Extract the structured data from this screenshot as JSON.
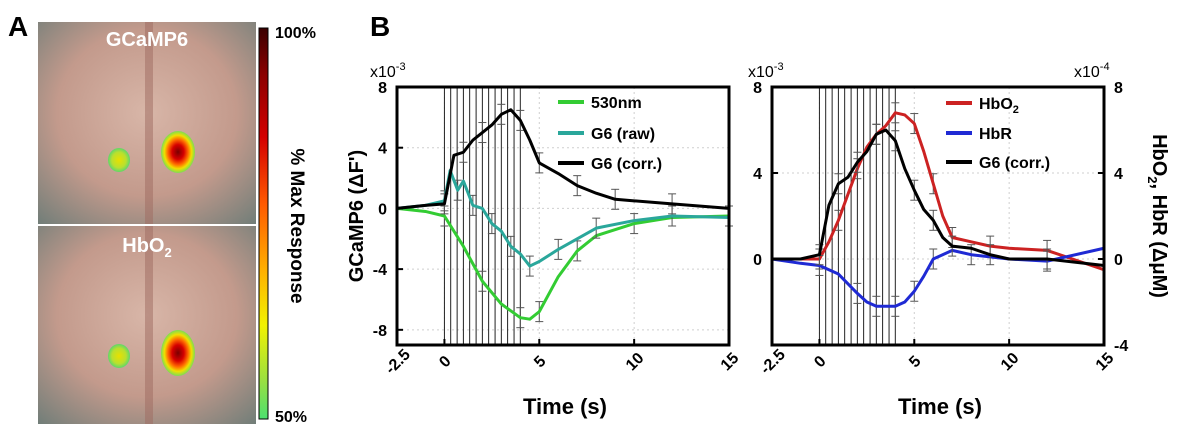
{
  "panel_a": {
    "label": "A",
    "top_image_title": "GCaMP6",
    "bottom_image_title_main": "HbO",
    "bottom_image_title_sub": "2",
    "colorbar": {
      "top_label": "100%",
      "bottom_label": "50%",
      "title": "% Max Response",
      "colors": [
        "#3b0000",
        "#8b0000",
        "#d40000",
        "#ff5a00",
        "#ffb000",
        "#f2f200",
        "#9be040",
        "#4ce070"
      ]
    }
  },
  "panel_b": {
    "label": "B"
  },
  "chart_data": [
    {
      "type": "line",
      "exponent_label": "x10",
      "exponent_power": "-3",
      "ylabel": "GCaMP6 (ΔF')",
      "xlabel": "Time (s)",
      "xlim": [
        -2.5,
        15
      ],
      "ylim": [
        -9,
        8
      ],
      "xticks": [
        -2.5,
        0,
        5,
        10,
        15
      ],
      "xtick_labels": [
        "-2.5",
        "0",
        "5",
        "10",
        "15"
      ],
      "yticks": [
        -8,
        -4,
        0,
        4,
        8
      ],
      "ytick_labels": [
        "-8",
        "-4",
        "0",
        "4",
        "8"
      ],
      "stim_times": [
        0,
        0.33,
        0.67,
        1.0,
        1.33,
        1.67,
        2.0,
        2.33,
        2.67,
        3.0,
        3.33,
        3.67,
        4.0
      ],
      "grid": true,
      "legend": "top-right",
      "series": [
        {
          "name": "530nm",
          "color": "#33cc33",
          "x": [
            -2.5,
            -1,
            0,
            1,
            2,
            3,
            4,
            4.5,
            5,
            6,
            7,
            8,
            10,
            12,
            15
          ],
          "y": [
            0,
            -0.2,
            -0.5,
            -2.5,
            -4.8,
            -6.3,
            -7.2,
            -7.3,
            -6.8,
            -4.5,
            -2.8,
            -1.8,
            -1.0,
            -0.6,
            -0.5
          ]
        },
        {
          "name": "G6 (raw)",
          "color": "#2aa79b",
          "x": [
            -2.5,
            -1,
            0,
            0.3,
            0.7,
            1,
            1.5,
            2,
            2.5,
            3,
            3.5,
            4,
            4.5,
            5,
            6,
            7,
            8,
            10,
            12,
            15
          ],
          "y": [
            0,
            0.2,
            0.5,
            2.5,
            1.2,
            1.8,
            0.2,
            0,
            -1.0,
            -1.5,
            -2.5,
            -3.0,
            -3.8,
            -3.5,
            -2.7,
            -2.0,
            -1.3,
            -0.8,
            -0.5,
            -0.6
          ]
        },
        {
          "name": "G6 (corr.)",
          "color": "#000000",
          "x": [
            -2.5,
            -1,
            0,
            0.5,
            1,
            1.5,
            2,
            2.5,
            3,
            3.5,
            4,
            4.5,
            5,
            6,
            7,
            8,
            9,
            10,
            12,
            15
          ],
          "y": [
            0,
            0.2,
            0.3,
            3.5,
            3.7,
            4.5,
            5.0,
            5.5,
            6.2,
            6.5,
            5.8,
            4.5,
            3.0,
            2.3,
            1.5,
            1.0,
            0.6,
            0.5,
            0.3,
            0
          ]
        }
      ]
    },
    {
      "type": "line",
      "exponent_label_left": "x10",
      "exponent_power_left": "-3",
      "exponent_label_right": "x10",
      "exponent_power_right": "-4",
      "ylabel_right_main": "HbO",
      "ylabel_right_sub": "2",
      "ylabel_right_rest": ", HbR (ΔμM)",
      "xlabel": "Time (s)",
      "xlim": [
        -2.5,
        15
      ],
      "ylim": [
        -4,
        8
      ],
      "xticks": [
        -2.5,
        0,
        5,
        10,
        15
      ],
      "xtick_labels": [
        "-2.5",
        "0",
        "5",
        "10",
        "15"
      ],
      "yticks": [
        -4,
        0,
        4,
        8
      ],
      "ytick_labels_left": [
        "",
        "0",
        "4",
        "8"
      ],
      "ytick_labels_right": [
        "-4",
        "0",
        "4",
        "8"
      ],
      "stim_times": [
        0,
        0.33,
        0.67,
        1.0,
        1.33,
        1.67,
        2.0,
        2.33,
        2.67,
        3.0,
        3.33,
        3.67,
        4.0
      ],
      "grid": true,
      "legend": "top-right",
      "series": [
        {
          "name_main": "HbO",
          "name_sub": "2",
          "color": "#cc2222",
          "x": [
            -2.5,
            -1,
            0,
            0.5,
            1,
            1.5,
            2,
            2.5,
            3,
            3.5,
            4,
            4.5,
            5,
            5.5,
            6,
            6.5,
            7,
            8,
            9,
            10,
            12,
            15
          ],
          "y": [
            0,
            0,
            0,
            0.8,
            1.8,
            3.0,
            4.2,
            5.2,
            5.8,
            6.2,
            6.8,
            6.7,
            6.3,
            5.0,
            3.5,
            2.0,
            1.0,
            0.8,
            0.6,
            0.5,
            0.4,
            -0.5
          ]
        },
        {
          "name": "HbR",
          "color": "#1f2ad4",
          "x": [
            -2.5,
            -1,
            0,
            1,
            2,
            2.5,
            3,
            3.5,
            4,
            4.5,
            5,
            5.5,
            6,
            7,
            8,
            10,
            12,
            15
          ],
          "y": [
            0,
            -0.2,
            -0.3,
            -0.7,
            -1.6,
            -2.0,
            -2.2,
            -2.2,
            -2.2,
            -2.0,
            -1.5,
            -0.8,
            0,
            0.4,
            0.2,
            0,
            -0.1,
            0.5
          ]
        },
        {
          "name": "G6 (corr.)",
          "color": "#000000",
          "x": [
            -2.5,
            -1,
            0,
            0.5,
            1,
            1.5,
            2,
            2.5,
            3,
            3.5,
            4,
            4.5,
            5,
            5.5,
            6,
            6.5,
            7,
            8,
            9,
            10,
            12,
            15
          ],
          "y": [
            0,
            0,
            0.2,
            2.5,
            3.5,
            3.8,
            4.5,
            5.0,
            5.8,
            6.0,
            5.5,
            4.2,
            3.2,
            2.3,
            1.8,
            1.0,
            0.6,
            0.5,
            0.2,
            0,
            0,
            -0.3
          ]
        }
      ]
    }
  ]
}
